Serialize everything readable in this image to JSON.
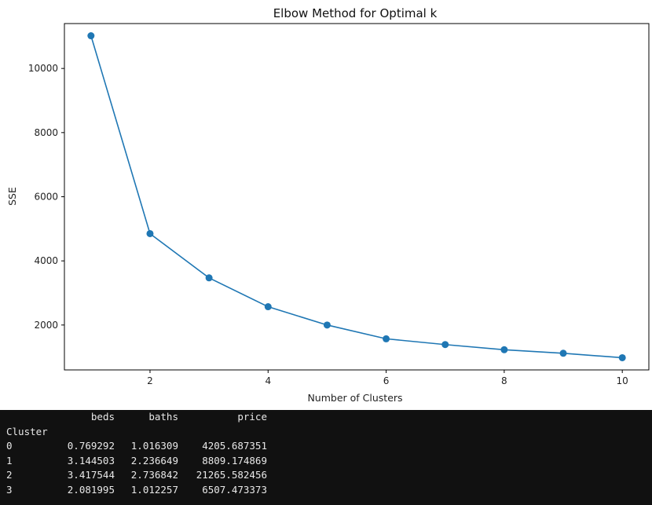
{
  "chart_data": {
    "type": "line",
    "title": "Elbow Method for Optimal k",
    "xlabel": "Number of Clusters",
    "ylabel": "SSE",
    "x": [
      1,
      2,
      3,
      4,
      5,
      6,
      7,
      8,
      9,
      10
    ],
    "series": [
      {
        "values": [
          11020,
          4850,
          3470,
          2570,
          2000,
          1570,
          1390,
          1230,
          1120,
          980
        ]
      }
    ],
    "xlim": [
      0.55,
      10.45
    ],
    "ylim": [
      600,
      11400
    ],
    "xticks": [
      2,
      4,
      6,
      8,
      10
    ],
    "yticks": [
      2000,
      4000,
      6000,
      8000,
      10000
    ],
    "marker": "circle",
    "color": "#1f77b4",
    "grid": false
  },
  "output": {
    "header": {
      "beds": "beds",
      "baths": "baths",
      "price": "price"
    },
    "index_name": "Cluster",
    "rows": [
      {
        "idx": "0",
        "beds": "0.769292",
        "baths": "1.016309",
        "price": "4205.687351"
      },
      {
        "idx": "1",
        "beds": "3.144503",
        "baths": "2.236649",
        "price": "8809.174869"
      },
      {
        "idx": "2",
        "beds": "3.417544",
        "baths": "2.736842",
        "price": "21265.582456"
      },
      {
        "idx": "3",
        "beds": "2.081995",
        "baths": "1.012257",
        "price": "6507.473373"
      }
    ]
  }
}
